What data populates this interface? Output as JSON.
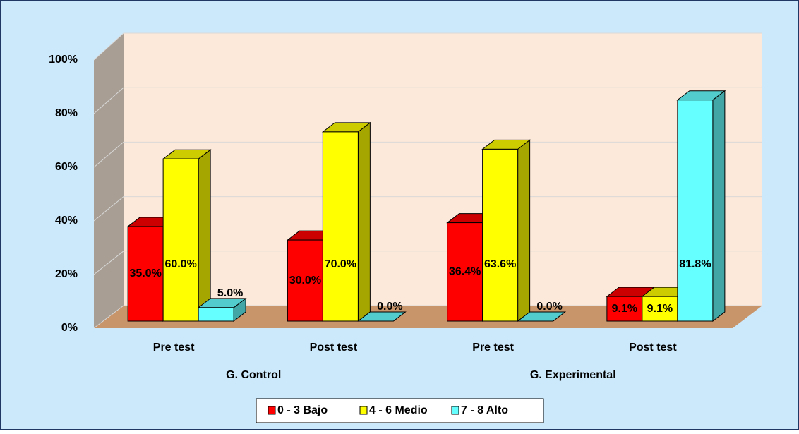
{
  "chart_data": {
    "type": "bar3d",
    "categories": [
      "Pre test",
      "Post test",
      "Pre test",
      "Post test"
    ],
    "groups": [
      "G. Control",
      "G. Experimental"
    ],
    "series": [
      {
        "name": "0 - 3 Bajo",
        "color": "#ff0000",
        "values": [
          35.0,
          30.0,
          36.4,
          9.1
        ],
        "value_labels": [
          "35.0%",
          "30.0%",
          "36.4%",
          "9.1%"
        ]
      },
      {
        "name": "4 - 6 Medio",
        "color": "#ffff00",
        "values": [
          60.0,
          70.0,
          63.6,
          9.1
        ],
        "value_labels": [
          "60.0%",
          "70.0%",
          "63.6%",
          "9.1%"
        ]
      },
      {
        "name": "7 - 8 Alto",
        "color": "#66ffff",
        "values": [
          5.0,
          0.0,
          0.0,
          81.8
        ],
        "value_labels": [
          "5.0%",
          "0.0%",
          "0.0%",
          "81.8%"
        ]
      }
    ],
    "ylim": [
      0,
      100
    ],
    "yticks": [
      {
        "value": 0,
        "label": "0%"
      },
      {
        "value": 20,
        "label": "20%"
      },
      {
        "value": 40,
        "label": "40%"
      },
      {
        "value": 60,
        "label": "60%"
      },
      {
        "value": 80,
        "label": "80%"
      },
      {
        "value": 100,
        "label": "100%"
      }
    ],
    "grid": true,
    "legend": "bottom"
  }
}
